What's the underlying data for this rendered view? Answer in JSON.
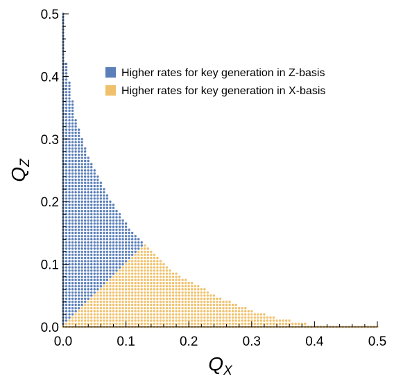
{
  "chart_data": {
    "type": "scatter",
    "title": "",
    "xlabel": "Q",
    "xlabel_sub": "X",
    "ylabel": "Q",
    "ylabel_sub": "Z",
    "xlim": [
      0,
      0.5
    ],
    "ylim": [
      0,
      0.5
    ],
    "x_ticks": [
      "0.0",
      "0.1",
      "0.2",
      "0.3",
      "0.4",
      "0.5"
    ],
    "y_ticks": [
      "0.0",
      "0.1",
      "0.2",
      "0.3",
      "0.4",
      "0.5"
    ],
    "grid": false,
    "legend_position": "top-right",
    "series": [
      {
        "name": "Higher rates for key generation in Z-basis",
        "color": "#5b7fb8",
        "description_region": "Q_Z > Q_X and inside the key-rate boundary",
        "boundary_points": [
          [
            0.0,
            0.5
          ],
          [
            0.005,
            0.42
          ],
          [
            0.02,
            0.33
          ],
          [
            0.04,
            0.27
          ],
          [
            0.06,
            0.23
          ],
          [
            0.08,
            0.195
          ],
          [
            0.1,
            0.165
          ],
          [
            0.12,
            0.14
          ],
          [
            0.14,
            0.12
          ],
          [
            0.16,
            0.1
          ],
          [
            0.2,
            0.073
          ],
          [
            0.25,
            0.047
          ],
          [
            0.3,
            0.026
          ],
          [
            0.35,
            0.012
          ],
          [
            0.4,
            0.003
          ],
          [
            0.42,
            0.0
          ]
        ]
      },
      {
        "name": "Higher rates for key generation in X-basis",
        "color": "#f0c16c",
        "description_region": "Q_X > Q_Z and inside the key-rate boundary",
        "boundary_points": [
          [
            0.0,
            0.5
          ],
          [
            0.005,
            0.42
          ],
          [
            0.02,
            0.33
          ],
          [
            0.04,
            0.27
          ],
          [
            0.06,
            0.23
          ],
          [
            0.08,
            0.195
          ],
          [
            0.1,
            0.165
          ],
          [
            0.12,
            0.14
          ],
          [
            0.14,
            0.12
          ],
          [
            0.16,
            0.1
          ],
          [
            0.2,
            0.073
          ],
          [
            0.25,
            0.047
          ],
          [
            0.3,
            0.026
          ],
          [
            0.35,
            0.012
          ],
          [
            0.4,
            0.003
          ],
          [
            0.42,
            0.0
          ]
        ]
      }
    ]
  }
}
